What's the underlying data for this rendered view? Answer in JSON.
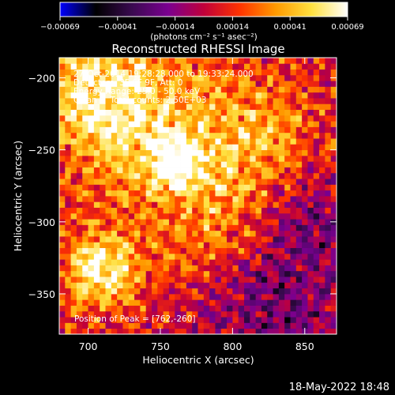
{
  "colorbar": {
    "tick_labels": [
      "−0.00069",
      "−0.00041",
      "−0.00014",
      "0.00014",
      "0.00041",
      "0.00069"
    ],
    "min": -0.00069,
    "max": 0.00069,
    "unit_label": "(photons cm⁻² s⁻¹ asec⁻²)",
    "colormap": [
      "#0000ff",
      "#000000",
      "#3a0a50",
      "#7a0090",
      "#c0003a",
      "#ff3300",
      "#ff9a00",
      "#ffe040",
      "#ffffff"
    ]
  },
  "chart_data": {
    "type": "heatmap",
    "title": "Reconstructed RHESSI Image",
    "xlabel": "Heliocentric X (arcsec)",
    "ylabel": "Heliocentric Y (arcsec)",
    "xlim": [
      680,
      872
    ],
    "ylim": [
      -378,
      -186
    ],
    "x_ticks": [
      700,
      750,
      800,
      850
    ],
    "y_ticks": [
      -200,
      -250,
      -300,
      -350
    ],
    "pixel_size_arcsec": 4,
    "sources": [
      {
        "x": 710,
        "y": -333,
        "peak": 1.0,
        "width": 18
      },
      {
        "x": 762,
        "y": -260,
        "peak": 0.9,
        "width": 12
      },
      {
        "x": 735,
        "y": -235,
        "peak": 0.7,
        "width": 35
      },
      {
        "x": 815,
        "y": -245,
        "peak": 0.55,
        "width": 30
      },
      {
        "x": 790,
        "y": -305,
        "peak": 0.45,
        "width": 30
      },
      {
        "x": 700,
        "y": -200,
        "peak": 0.6,
        "width": 30
      }
    ],
    "negative_regions": [
      {
        "x": 828,
        "y": -350,
        "depth": -0.55,
        "width": 38
      },
      {
        "x": 855,
        "y": -290,
        "depth": -0.35,
        "width": 25
      }
    ],
    "annotations": [
      "27-Oct-2014 19:28:28.000 to 19:33:24.000",
      "Detectors: 3F 6F 9F, Att: 0",
      "Energy Range: 25.0 - 50.0 keV",
      "Clean     Total counts: 2.50E+03"
    ],
    "peak_label": "Position of Peak = [762,-260]"
  },
  "timestamp": "18-May-2022 18:48"
}
